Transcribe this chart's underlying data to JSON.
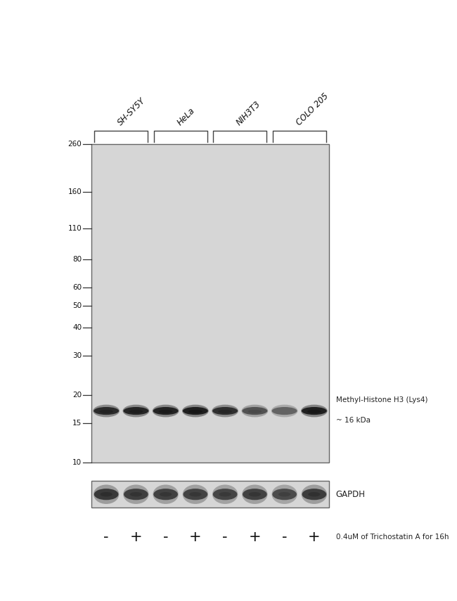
{
  "figure_width": 6.5,
  "figure_height": 8.55,
  "bg_color": "#ffffff",
  "blot_bg_color": "#d6d6d6",
  "blot_border_color": "#666666",
  "cell_lines": [
    "SH-SY5Y",
    "HeLa",
    "NIH3T3",
    "COLO 205"
  ],
  "lane_labels": [
    "-",
    "+",
    "-",
    "+",
    "-",
    "+",
    "-",
    "+"
  ],
  "treatment_label": "0.4uM of Trichostatin A for 16h",
  "mw_markers": [
    260,
    160,
    110,
    80,
    60,
    50,
    40,
    30,
    20,
    15,
    10
  ],
  "band_annotation_line1": "Methyl-Histone H3 (Lys4)",
  "band_annotation_line2": "~ 16 kDa",
  "gapdh_label": "GAPDH",
  "main_band_intensities": [
    0.82,
    0.88,
    0.9,
    0.93,
    0.78,
    0.42,
    0.25,
    0.92
  ],
  "gapdh_intensities": [
    0.78,
    0.72,
    0.7,
    0.68,
    0.65,
    0.7,
    0.58,
    0.75
  ],
  "ml": 0.2,
  "mr": 0.72,
  "mt": 0.76,
  "mb": 0.23,
  "gt": 0.2,
  "gb": 0.155,
  "n_lanes": 8
}
